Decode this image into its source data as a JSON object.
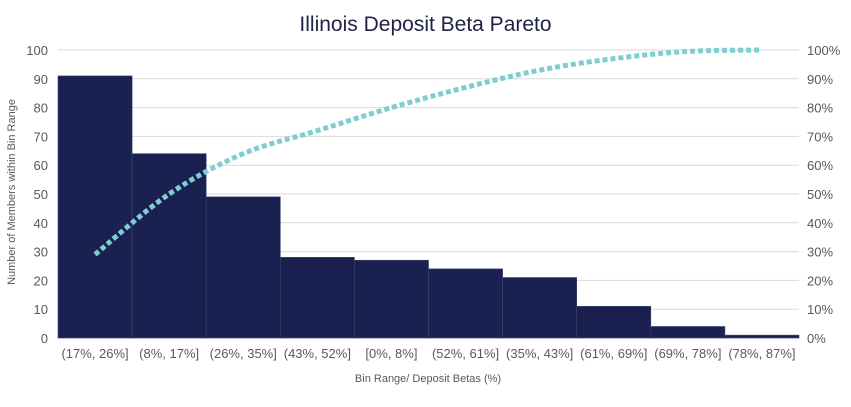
{
  "chart_data": {
    "type": "bar",
    "title": "Illinois Deposit Beta Pareto",
    "xlabel": "Bin Range/ Deposit Betas (%)",
    "ylabel": "Number of Members within Bin Range",
    "categories": [
      "(17%, 26%]",
      "(8%, 17%]",
      "(26%, 35%]",
      "(43%, 52%]",
      "[0%, 8%]",
      "(52%, 61%]",
      "(35%, 43%]",
      "(61%, 69%]",
      "(69%, 78%]",
      "(78%, 87%]"
    ],
    "series": [
      {
        "type": "bar",
        "values": [
          91,
          64,
          49,
          28,
          27,
          24,
          21,
          11,
          4,
          1
        ]
      },
      {
        "type": "line",
        "axis": "right",
        "values": [
          29,
          50,
          64,
          72,
          80,
          87,
          93,
          97,
          99.5,
          100
        ]
      }
    ],
    "ylim": [
      0,
      100
    ],
    "y_ticks": [
      "0",
      "10",
      "20",
      "30",
      "40",
      "50",
      "60",
      "70",
      "80",
      "90",
      "100"
    ],
    "y2lim": [
      0,
      100
    ],
    "y2_ticks": [
      "0%",
      "10%",
      "20%",
      "30%",
      "40%",
      "50%",
      "60%",
      "70%",
      "80%",
      "90%",
      "100%"
    ],
    "grid": true,
    "legend": "none",
    "colors": {
      "bar": "#1a2150",
      "line": "#7fcdd0",
      "grid": "#d9d9d9"
    }
  }
}
